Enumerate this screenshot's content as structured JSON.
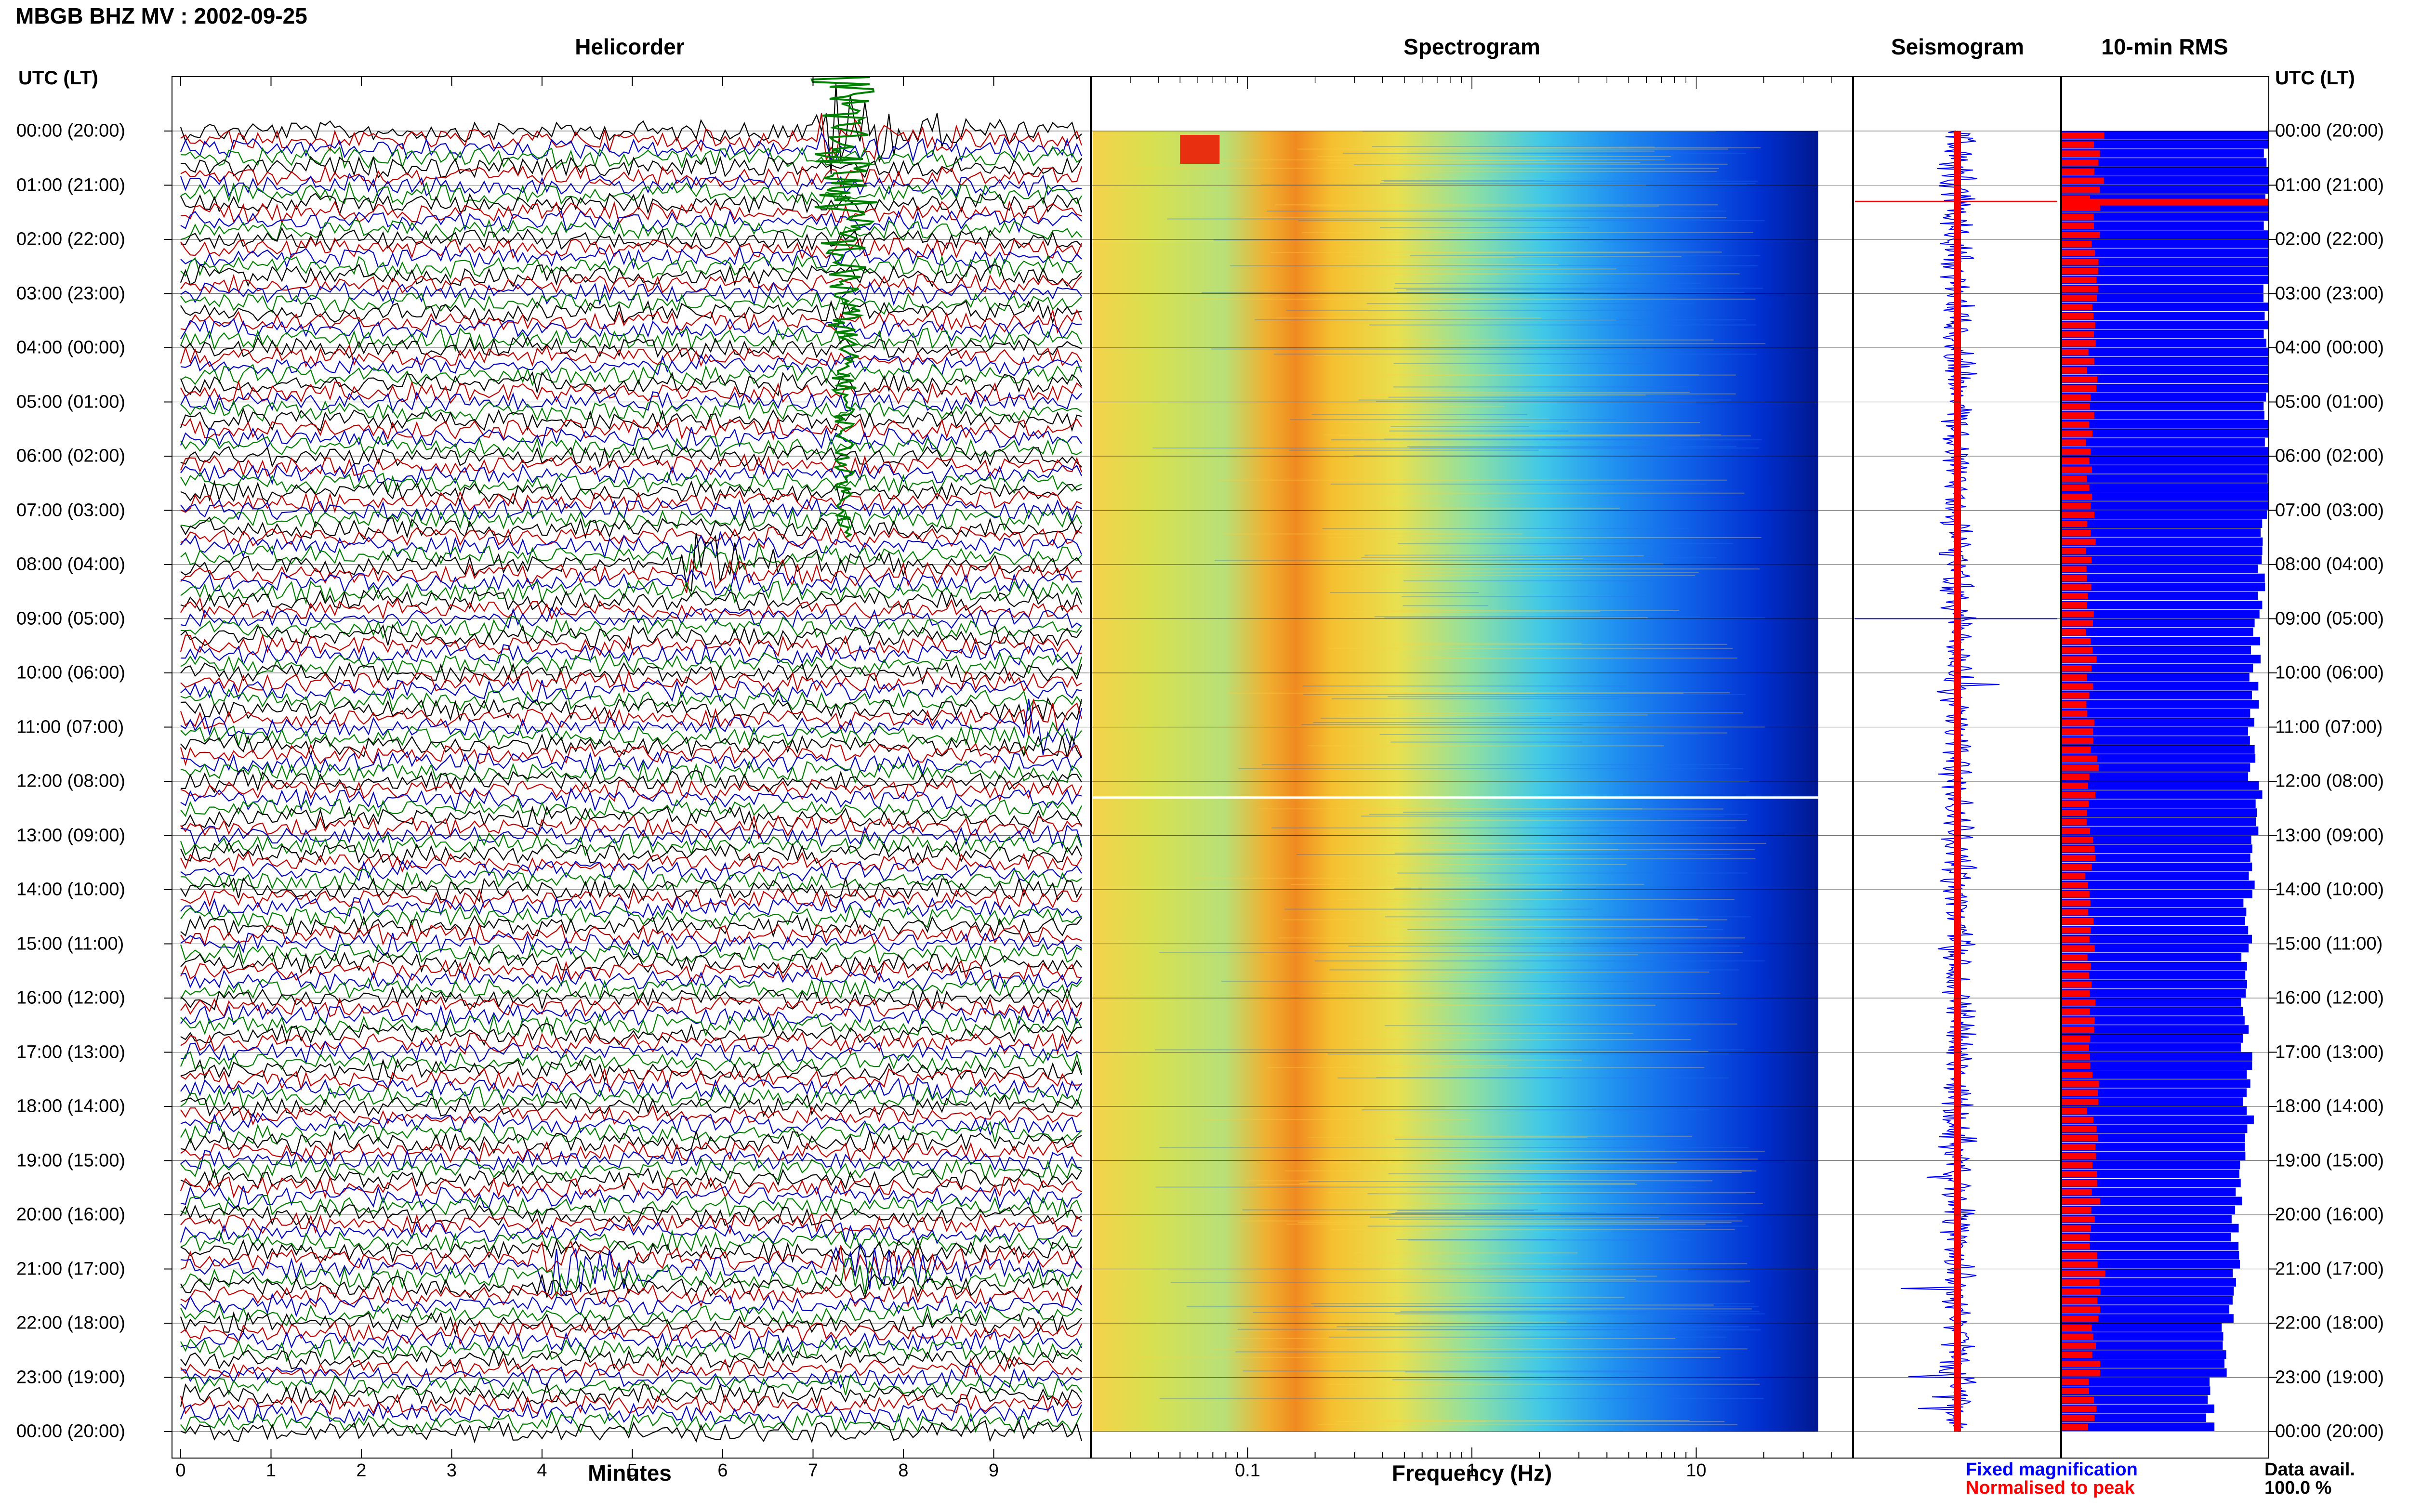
{
  "title": "MBGB BHZ MV : 2002-09-25",
  "panels": {
    "helicorder": "Helicorder",
    "spectrogram": "Spectrogram",
    "seismogram": "Seismogram",
    "rms": "10-min RMS"
  },
  "utc_header": "UTC (LT)",
  "time_labels": [
    "00:00 (20:00)",
    "01:00 (21:00)",
    "02:00 (22:00)",
    "03:00 (23:00)",
    "04:00 (00:00)",
    "05:00 (01:00)",
    "06:00 (02:00)",
    "07:00 (03:00)",
    "08:00 (04:00)",
    "09:00 (05:00)",
    "10:00 (06:00)",
    "11:00 (07:00)",
    "12:00 (08:00)",
    "13:00 (09:00)",
    "14:00 (10:00)",
    "15:00 (11:00)",
    "16:00 (12:00)",
    "17:00 (13:00)",
    "18:00 (14:00)",
    "19:00 (15:00)",
    "20:00 (16:00)",
    "21:00 (17:00)",
    "22:00 (18:00)",
    "23:00 (19:00)",
    "00:00 (20:00)"
  ],
  "legend": {
    "fixed": "Fixed magnification",
    "normalised": "Normalised to peak",
    "data_avail_label": "Data avail.",
    "data_avail_value": "100.0 %"
  },
  "colors": {
    "trace_cycle": [
      "#000000",
      "#c00000",
      "#0000c0",
      "#008000"
    ],
    "fixed": "#0000ff",
    "normalised": "#ff0000"
  },
  "chart_data": [
    {
      "type": "line",
      "name": "Helicorder",
      "xlabel": "Minutes",
      "xlim": [
        0,
        10
      ],
      "x_ticks": [
        "0",
        "1",
        "2",
        "3",
        "4",
        "5",
        "6",
        "7",
        "8",
        "9"
      ],
      "traces_per_hour": 6,
      "hours": 24,
      "events": [
        {
          "hour": 0,
          "minute": 7.3,
          "amplitude": "large",
          "note": "green trace"
        },
        {
          "hour": 8,
          "minute": 5.9,
          "amplitude": "medium"
        },
        {
          "hour": 11,
          "minute": 9.6,
          "amplitude": "medium"
        },
        {
          "hour": 21,
          "minute": 4.3,
          "amplitude": "medium"
        },
        {
          "hour": 21,
          "minute": 7.5,
          "amplitude": "medium"
        }
      ]
    },
    {
      "type": "heatmap",
      "name": "Spectrogram",
      "xlabel": "Frequency (Hz)",
      "xscale": "log",
      "xlim": [
        0.02,
        50
      ],
      "x_ticks": [
        "0.1",
        "1",
        "10"
      ],
      "y": "time (UTC hours 0-24)",
      "peak_band_hz": [
        0.2,
        0.35
      ]
    },
    {
      "type": "line",
      "name": "Seismogram",
      "y": "time (UTC hours 0-24)",
      "series": [
        "Fixed magnification",
        "Normalised to peak"
      ]
    },
    {
      "type": "bar",
      "name": "10-min RMS",
      "orientation": "horizontal",
      "bins_per_hour": 6,
      "hours": 24,
      "series": [
        {
          "name": "Fixed magnification",
          "relative_level_by_hour": [
            1.0,
            1.0,
            1.0,
            1.0,
            1.0,
            1.0,
            1.0,
            0.97,
            0.96,
            0.94,
            0.93,
            0.92,
            0.96,
            0.93,
            0.9,
            0.89,
            0.88,
            0.9,
            0.91,
            0.85,
            0.84,
            0.82,
            0.78,
            0.72
          ]
        },
        {
          "name": "Normalised to peak",
          "relative_level_by_hour": [
            0.18,
            0.16,
            0.15,
            0.15,
            0.15,
            0.14,
            0.14,
            0.14,
            0.14,
            0.14,
            0.14,
            0.15,
            0.14,
            0.14,
            0.14,
            0.14,
            0.14,
            0.15,
            0.15,
            0.16,
            0.16,
            0.18,
            0.16,
            0.15
          ]
        }
      ]
    }
  ]
}
